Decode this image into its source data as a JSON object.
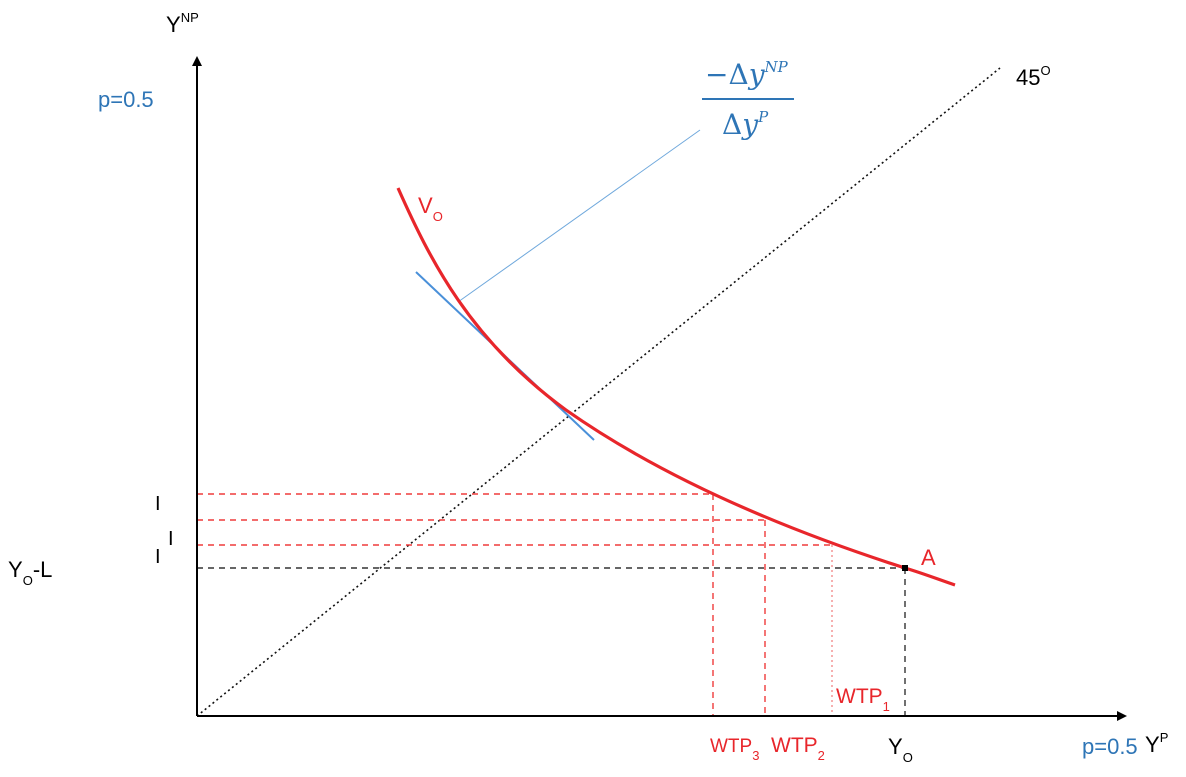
{
  "colors": {
    "axis": "#000000",
    "curve": "#e8262b",
    "tangent": "#4a90d9",
    "label_blue": "#2e75b6",
    "guide_black": "#333333",
    "guide_red": "#ef3b3b"
  },
  "axes": {
    "y_label_main": "Y",
    "y_label_sup": "NP",
    "x_label_main": "Y",
    "x_label_sup": "P",
    "y_prob": "p=0.5",
    "x_prob": "p=0.5"
  },
  "labels": {
    "line_45": "45",
    "line_45_sup": "O",
    "curve_main": "V",
    "curve_sub": "O",
    "point_a": "A",
    "yo_main": "Y",
    "yo_sub": "O",
    "yol_main": "Y",
    "yol_sub": "O",
    "yol_rest": "-L",
    "wtp_main": "WTP",
    "wtp1_sub": "1",
    "wtp2_sub": "2",
    "wtp3_sub": "3",
    "tick_mark": "I"
  },
  "formula": {
    "numerator_prefix": "−Δ",
    "numerator_var": "y",
    "numerator_sup": "NP",
    "denominator_prefix": "Δ",
    "denominator_var": "y",
    "denominator_sup": "P"
  }
}
